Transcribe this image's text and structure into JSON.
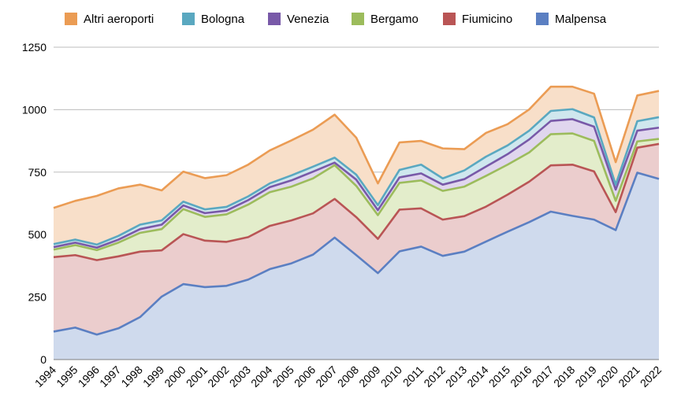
{
  "chart_data": {
    "type": "area",
    "stacked": true,
    "x": [
      "1994",
      "1995",
      "1996",
      "1997",
      "1998",
      "1999",
      "2000",
      "2001",
      "2002",
      "2003",
      "2004",
      "2005",
      "2006",
      "2007",
      "2008",
      "2009",
      "2010",
      "2011",
      "2012",
      "2013",
      "2014",
      "2015",
      "2016",
      "2017",
      "2018",
      "2019",
      "2020",
      "2021",
      "2022"
    ],
    "ylim": [
      0,
      1250
    ],
    "yticks": [
      "0",
      "250",
      "500",
      "750",
      "1000",
      "1250"
    ],
    "grid": true,
    "legend_position": "top",
    "series": [
      {
        "name": "Malpensa",
        "color": "#5b7fc2",
        "fill": "#cfdaed",
        "values": [
          112,
          128,
          100,
          125,
          170,
          252,
          302,
          290,
          295,
          320,
          362,
          385,
          420,
          488,
          418,
          346,
          433,
          452,
          415,
          432,
          472,
          512,
          550,
          592,
          575,
          560,
          518,
          748,
          723
        ]
      },
      {
        "name": "Fiumicino",
        "color": "#b95555",
        "fill": "#ebcdcd",
        "values": [
          298,
          290,
          298,
          288,
          262,
          185,
          200,
          186,
          176,
          170,
          173,
          172,
          165,
          155,
          152,
          137,
          167,
          153,
          145,
          142,
          140,
          148,
          162,
          185,
          205,
          193,
          72,
          100,
          140
        ]
      },
      {
        "name": "Bergamo",
        "color": "#9cbc5c",
        "fill": "#e3edcb",
        "values": [
          30,
          40,
          40,
          55,
          75,
          85,
          100,
          95,
          110,
          130,
          135,
          135,
          140,
          135,
          125,
          95,
          107,
          112,
          115,
          118,
          123,
          120,
          117,
          125,
          125,
          122,
          45,
          25,
          20
        ]
      },
      {
        "name": "Venezia",
        "color": "#7859a8",
        "fill": "#e0d6ee",
        "values": [
          10,
          10,
          10,
          12,
          15,
          18,
          15,
          15,
          15,
          18,
          20,
          25,
          27,
          10,
          25,
          20,
          22,
          28,
          25,
          30,
          37,
          42,
          52,
          53,
          57,
          57,
          45,
          43,
          45
        ]
      },
      {
        "name": "Bologna",
        "color": "#5aa8c0",
        "fill": "#cfe7ee",
        "values": [
          12,
          12,
          12,
          15,
          18,
          17,
          15,
          15,
          15,
          15,
          15,
          20,
          20,
          20,
          20,
          20,
          30,
          35,
          25,
          35,
          40,
          35,
          35,
          40,
          40,
          37,
          20,
          38,
          42
        ]
      },
      {
        "name": "Altri aeroporti",
        "color": "#eb9c54",
        "fill": "#f8dfc9",
        "values": [
          145,
          155,
          195,
          190,
          160,
          120,
          120,
          125,
          127,
          127,
          132,
          140,
          148,
          172,
          148,
          87,
          110,
          95,
          120,
          85,
          95,
          85,
          85,
          97,
          90,
          95,
          90,
          103,
          105
        ]
      }
    ]
  }
}
